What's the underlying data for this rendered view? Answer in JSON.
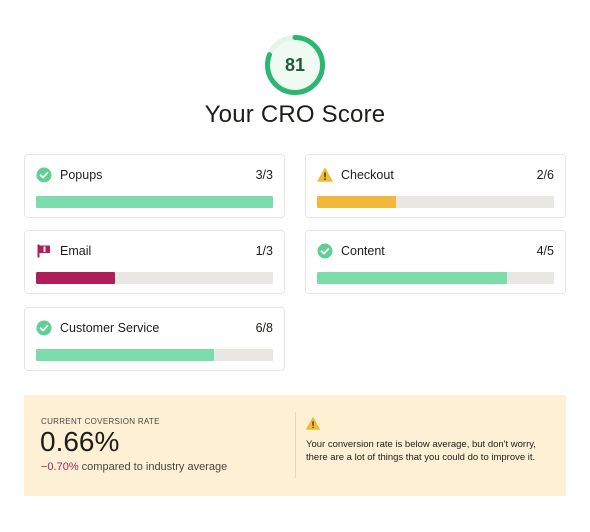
{
  "score": {
    "value": "81",
    "fraction": 0.81,
    "title": "Your CRO Score",
    "ring_color": "#2bb673",
    "track_color": "#e6f6ec"
  },
  "cards": [
    {
      "label": "Popups",
      "value": "3/3",
      "progress": 1.0,
      "status": "pass",
      "icon": "check-circle-icon",
      "bar_color": "#7ddcac"
    },
    {
      "label": "Checkout",
      "value": "2/6",
      "progress": 0.333,
      "status": "warning",
      "icon": "warning-triangle-icon",
      "bar_color": "#f0b93a"
    },
    {
      "label": "Email",
      "value": "1/3",
      "progress": 0.333,
      "status": "fail",
      "icon": "flag-icon",
      "bar_color": "#b01e57"
    },
    {
      "label": "Content",
      "value": "4/5",
      "progress": 0.8,
      "status": "pass",
      "icon": "check-circle-icon",
      "bar_color": "#7ddcac"
    },
    {
      "label": "Customer Service",
      "value": "6/8",
      "progress": 0.75,
      "status": "pass",
      "icon": "check-circle-icon",
      "bar_color": "#7ddcac"
    }
  ],
  "summary": {
    "caption": "CURRENT COVERSION RATE",
    "rate": "0.66%",
    "delta": "−0.70%",
    "compare_text": " compared to industry average",
    "warning_icon": "warning-triangle-icon",
    "message": "Your conversion rate is below average, but don't worry, there are a lot of things that you could do to improve it.",
    "background": "#fdf0d4"
  },
  "colors": {
    "pass": "#7ddcac",
    "pass_icon": "#5fcf96",
    "warning": "#f0b93a",
    "fail": "#b01e57"
  }
}
